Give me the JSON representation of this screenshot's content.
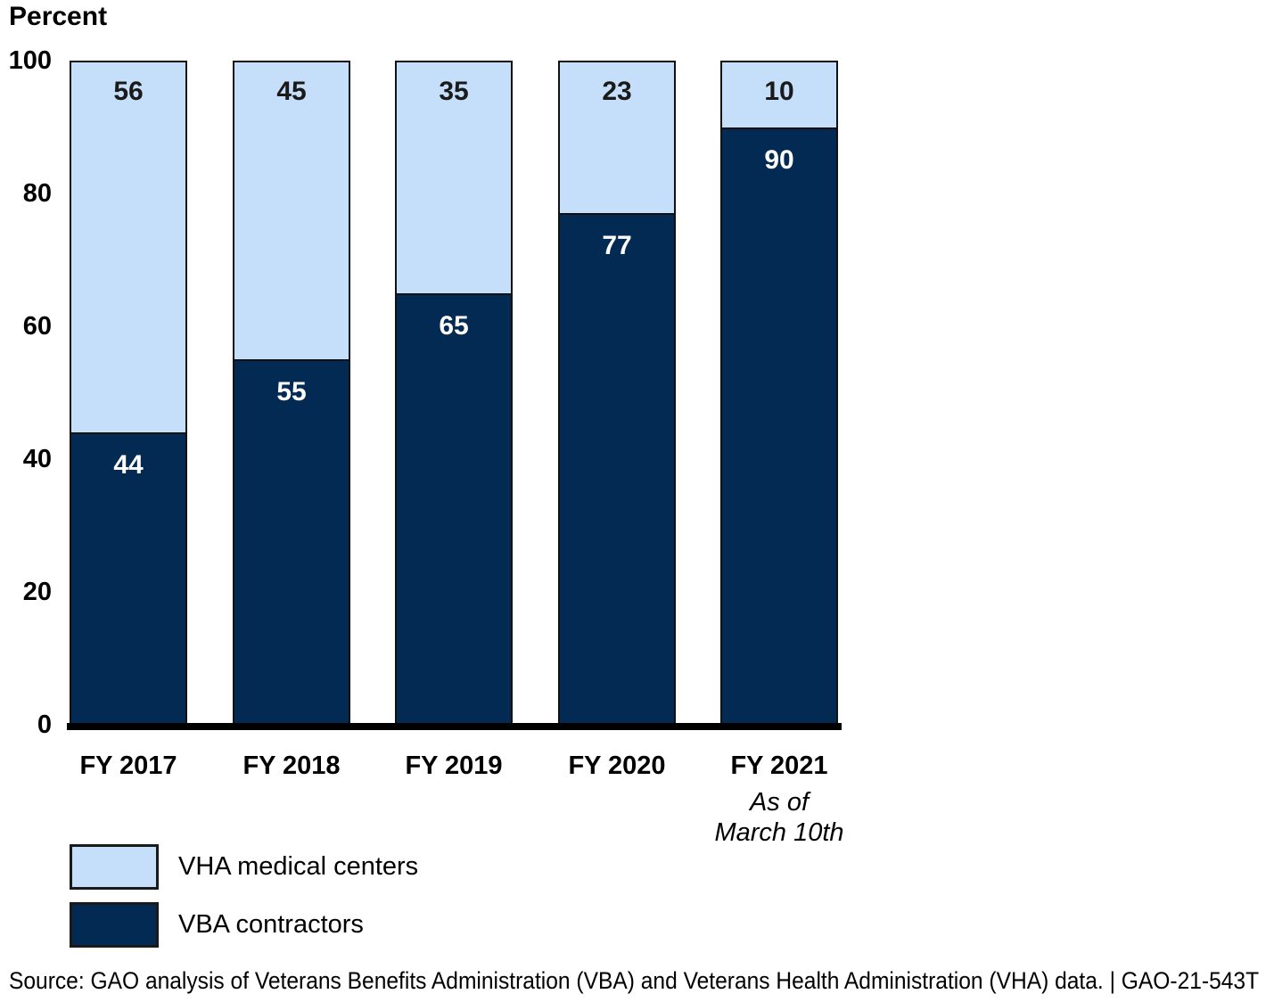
{
  "title": "Percent",
  "chart_data": {
    "type": "bar",
    "stacked": true,
    "title": "",
    "ylabel": "Percent",
    "xlabel": "",
    "ylim": [
      0,
      100
    ],
    "yticks": [
      0,
      20,
      40,
      60,
      80,
      100
    ],
    "grid": false,
    "legend_position": "bottom-left",
    "categories": [
      "FY 2017",
      "FY 2018",
      "FY 2019",
      "FY 2020",
      "FY 2021"
    ],
    "category_note": {
      "category_index": 4,
      "lines": [
        "As of",
        "March 10th"
      ]
    },
    "series": [
      {
        "name": "VHA medical centers",
        "color": "#c5defa",
        "label_color": "#1a1a1a",
        "values": [
          56,
          45,
          35,
          23,
          10
        ]
      },
      {
        "name": "VBA contractors",
        "color": "#032a52",
        "label_color": "#ffffff",
        "values": [
          44,
          55,
          65,
          77,
          90
        ]
      }
    ]
  },
  "legend": {
    "items": [
      {
        "label": "VHA medical centers",
        "color": "#c5defa"
      },
      {
        "label": "VBA contractors",
        "color": "#032a52"
      }
    ]
  },
  "source_line": "Source: GAO analysis of Veterans Benefits Administration (VBA) and Veterans Health Administration (VHA) data. | GAO-21-543T",
  "colors": {
    "light_blue": "#c5defa",
    "navy": "#032a52",
    "bar_border": "#111111",
    "axis": "#000000",
    "value_label_dark": "#1a1a1a",
    "value_label_light": "#ffffff"
  }
}
